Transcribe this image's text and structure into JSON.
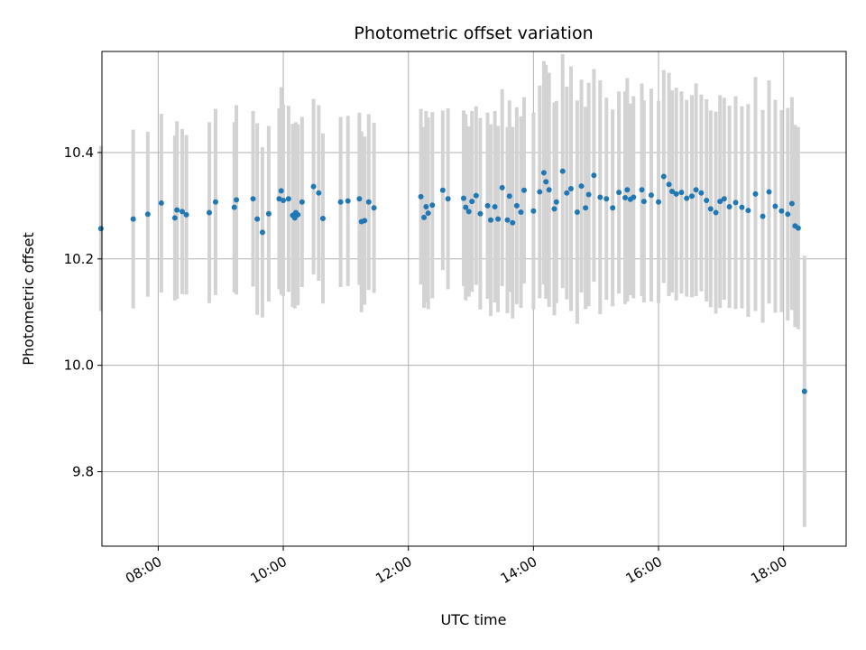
{
  "chart_data": {
    "type": "scatter",
    "title": "Photometric offset variation",
    "xlabel": "UTC time",
    "ylabel": "Photometric offset",
    "xlim": [
      "07:06",
      "19:00"
    ],
    "ylim": [
      9.66,
      10.59
    ],
    "x_ticks": [
      "08:00",
      "10:00",
      "12:00",
      "14:00",
      "16:00",
      "18:00"
    ],
    "y_ticks": [
      9.8,
      10.0,
      10.2,
      10.4
    ],
    "grid": true,
    "point_color": "#1f77b4",
    "errorbar_color": "#d3d3d3",
    "series": [
      {
        "x": [
          "07:05",
          "07:36",
          "07:50",
          "08:03",
          "08:16",
          "08:18",
          "08:23",
          "08:27",
          "08:49",
          "08:55",
          "09:13",
          "09:15",
          "09:31",
          "09:35",
          "09:40",
          "09:46",
          "09:56",
          "09:58",
          "10:00",
          "10:05",
          "10:09",
          "10:11",
          "10:12",
          "10:14",
          "10:18",
          "10:29",
          "10:34",
          "10:38",
          "10:55",
          "11:02",
          "11:13",
          "11:15",
          "11:18",
          "11:22",
          "11:27"
        ],
        "y": [
          10.257,
          10.275,
          10.284,
          10.305,
          10.277,
          10.292,
          10.289,
          10.283,
          10.287,
          10.307,
          10.297,
          10.311,
          10.313,
          10.275,
          10.25,
          10.285,
          10.313,
          10.328,
          10.31,
          10.313,
          10.282,
          10.277,
          10.287,
          10.283,
          10.307,
          10.336,
          10.324,
          10.276,
          10.307,
          10.309,
          10.313,
          10.27,
          10.272,
          10.307,
          10.296
        ],
        "err": [
          0.155,
          0.168,
          0.155,
          0.168,
          0.155,
          0.167,
          0.155,
          0.15,
          0.17,
          0.175,
          0.16,
          0.178,
          0.165,
          0.18,
          0.16,
          0.165,
          0.17,
          0.195,
          0.18,
          0.175,
          0.172,
          0.17,
          0.17,
          0.17,
          0.16,
          0.165,
          0.165,
          0.16,
          0.16,
          0.16,
          0.162,
          0.17,
          0.158,
          0.165,
          0.16
        ]
      },
      {
        "x": [
          "12:12",
          "12:15",
          "12:17",
          "12:19",
          "12:23",
          "12:33",
          "12:38",
          "12:53",
          "12:55",
          "12:58",
          "13:01",
          "13:05",
          "13:09",
          "13:16",
          "13:19",
          "13:23",
          "13:26",
          "13:30",
          "13:35",
          "13:37",
          "13:40",
          "13:44",
          "13:48",
          "13:51",
          "14:00",
          "14:06",
          "14:10",
          "14:12",
          "14:15",
          "14:20",
          "14:22",
          "14:28",
          "14:32",
          "14:36",
          "14:42",
          "14:46",
          "14:50",
          "14:53",
          "14:58",
          "15:04",
          "15:10",
          "15:16",
          "15:22",
          "15:28",
          "15:30",
          "15:33",
          "15:36",
          "15:44",
          "15:46",
          "15:53",
          "16:00",
          "16:05",
          "16:10",
          "16:13",
          "16:17",
          "16:22",
          "16:27",
          "16:32",
          "16:36",
          "16:41",
          "16:46",
          "16:50",
          "16:55",
          "16:59",
          "17:03",
          "17:08",
          "17:14",
          "17:20",
          "17:26",
          "17:33",
          "17:40",
          "17:46",
          "17:52",
          "17:58",
          "18:04",
          "18:08",
          "18:11",
          "18:14",
          "18:20"
        ],
        "y": [
          10.317,
          10.278,
          10.298,
          10.286,
          10.301,
          10.329,
          10.313,
          10.314,
          10.297,
          10.289,
          10.308,
          10.319,
          10.285,
          10.3,
          10.273,
          10.298,
          10.275,
          10.334,
          10.273,
          10.318,
          10.268,
          10.3,
          10.288,
          10.329,
          10.29,
          10.326,
          10.362,
          10.345,
          10.33,
          10.294,
          10.307,
          10.365,
          10.324,
          10.332,
          10.288,
          10.337,
          10.296,
          10.321,
          10.357,
          10.316,
          10.313,
          10.296,
          10.325,
          10.315,
          10.33,
          10.312,
          10.316,
          10.33,
          10.308,
          10.32,
          10.307,
          10.355,
          10.34,
          10.327,
          10.322,
          10.325,
          10.314,
          10.318,
          10.33,
          10.324,
          10.31,
          10.294,
          10.287,
          10.308,
          10.313,
          10.298,
          10.306,
          10.297,
          10.291,
          10.322,
          10.28,
          10.326,
          10.299,
          10.29,
          10.284,
          10.304,
          10.262,
          10.258,
          9.951
        ],
        "err": [
          0.165,
          0.17,
          0.18,
          0.18,
          0.175,
          0.15,
          0.17,
          0.165,
          0.175,
          0.16,
          0.17,
          0.168,
          0.18,
          0.175,
          0.18,
          0.18,
          0.175,
          0.185,
          0.175,
          0.18,
          0.18,
          0.185,
          0.18,
          0.175,
          0.185,
          0.2,
          0.21,
          0.22,
          0.22,
          0.2,
          0.19,
          0.22,
          0.2,
          0.23,
          0.21,
          0.2,
          0.19,
          0.21,
          0.2,
          0.22,
          0.19,
          0.185,
          0.19,
          0.2,
          0.21,
          0.18,
          0.19,
          0.2,
          0.19,
          0.2,
          0.19,
          0.2,
          0.21,
          0.19,
          0.2,
          0.19,
          0.185,
          0.19,
          0.2,
          0.185,
          0.19,
          0.185,
          0.19,
          0.2,
          0.19,
          0.19,
          0.2,
          0.19,
          0.2,
          0.22,
          0.2,
          0.21,
          0.2,
          0.19,
          0.2,
          0.2,
          0.19,
          0.19,
          0.255
        ]
      }
    ]
  }
}
